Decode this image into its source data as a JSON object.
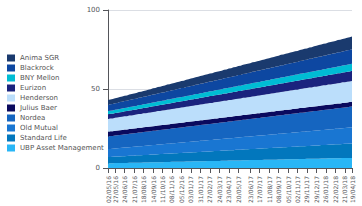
{
  "chart_data": {
    "type": "area",
    "stacked": true,
    "grid": true,
    "legend": "left",
    "ylim": [
      0,
      100
    ],
    "yticks": [
      0,
      50,
      100
    ],
    "categories": [
      "02/05/16",
      null,
      null,
      "27/05/16",
      null,
      null,
      null,
      "24/06/16",
      null,
      null,
      null,
      "21/07/16",
      null,
      null,
      null,
      "18/08/16",
      null,
      null,
      null,
      "14/09/16",
      null,
      null,
      null,
      "11/10/16",
      null,
      null,
      null,
      "08/11/16",
      null,
      null,
      null,
      "05/12/16",
      null,
      null,
      null,
      "03/01/17",
      null,
      null,
      null,
      "31/01/17",
      null,
      null,
      null,
      "27/02/17",
      null,
      null,
      null,
      "24/03/17",
      null,
      null,
      null,
      "23/04/17",
      null,
      null,
      null,
      "20/05/17",
      null,
      null,
      null,
      null,
      "23/06/17",
      null,
      null,
      null,
      "17/07/17",
      null,
      null,
      null,
      "11/08/17",
      null,
      null,
      null,
      "08/09/17",
      null,
      null,
      null,
      "05/10/17",
      null,
      null,
      null,
      "02/11/17",
      null,
      null,
      null,
      "29/11/17",
      null,
      null,
      null,
      "29/12/17",
      null,
      null,
      null,
      "26/01/18",
      null,
      null,
      null,
      "22/02/18",
      null,
      null,
      null,
      "21/03/18",
      null,
      null,
      "19/04/18"
    ],
    "series": [
      {
        "name": "UBP Asset Management",
        "color": "#29b6f6",
        "values": [
          3.0,
          3.0,
          3.0,
          3.1,
          3.1,
          3.1,
          3.2,
          3.2,
          3.2,
          3.3,
          3.3,
          3.3,
          3.4,
          3.4,
          3.4,
          3.5,
          3.5,
          3.5,
          3.6,
          3.6,
          3.6,
          3.7,
          3.7,
          3.7,
          3.8,
          3.8,
          3.8,
          3.9,
          3.9,
          3.9,
          4.0,
          4.0,
          4.0,
          4.1,
          4.1,
          4.1,
          4.2,
          4.2,
          4.2,
          4.3,
          4.3,
          4.3,
          4.4,
          4.4,
          4.4,
          4.5,
          4.5,
          4.5,
          4.6,
          4.6,
          4.6,
          4.7,
          4.7,
          4.7,
          4.8,
          4.8,
          4.8,
          4.9,
          4.9,
          4.9,
          5.0,
          5.0,
          5.0,
          5.1,
          5.1,
          5.1,
          5.2,
          5.2,
          5.2,
          5.3,
          5.3,
          5.3,
          5.4,
          5.4,
          5.4,
          5.5,
          5.5,
          5.5,
          5.6,
          5.6,
          5.6,
          5.7,
          5.7,
          5.7,
          5.8,
          5.8,
          5.8,
          5.9,
          5.9,
          5.9,
          6.0,
          6.0,
          6.0,
          6.1,
          6.1,
          6.1,
          6.2,
          6.2,
          6.2,
          6.3,
          6.3,
          6.3,
          6.4,
          6.4
        ]
      },
      {
        "name": "Standard Life",
        "color": "#0277bd",
        "values": [
          4.0,
          4.0,
          4.1,
          4.1,
          4.2,
          4.2,
          4.3,
          4.3,
          4.4,
          4.4,
          4.5,
          4.5,
          4.6,
          4.6,
          4.7,
          4.7,
          4.8,
          4.8,
          4.9,
          4.9,
          5.0,
          5.0,
          5.1,
          5.1,
          5.2,
          5.2,
          5.3,
          5.3,
          5.4,
          5.4,
          5.5,
          5.5,
          5.6,
          5.6,
          5.7,
          5.7,
          5.8,
          5.8,
          5.9,
          5.9,
          6.0,
          6.0,
          6.1,
          6.1,
          6.2,
          6.2,
          6.3,
          6.3,
          6.4,
          6.4,
          6.5,
          6.5,
          6.6,
          6.6,
          6.7,
          6.7,
          6.8,
          6.8,
          6.9,
          6.9,
          7.0,
          7.0,
          7.1,
          7.1,
          7.2,
          7.2,
          7.3,
          7.3,
          7.4,
          7.4,
          7.5,
          7.5,
          7.6,
          7.6,
          7.7,
          7.7,
          7.8,
          7.8,
          7.9,
          7.9,
          8.0,
          8.0,
          8.1,
          8.1,
          8.2,
          8.2,
          8.3,
          8.3,
          8.4,
          8.4,
          8.5,
          8.5,
          8.6,
          8.6,
          8.7,
          8.7,
          8.8,
          8.8,
          8.9,
          8.9,
          9.0,
          9.0,
          9.1,
          9.1
        ]
      },
      {
        "name": "Old Mutual",
        "color": "#1976d2",
        "values": [
          5.0,
          5.1,
          5.1,
          5.2,
          5.2,
          5.3,
          5.3,
          5.4,
          5.4,
          5.5,
          5.5,
          5.6,
          5.6,
          5.7,
          5.7,
          5.8,
          5.8,
          5.9,
          5.9,
          6.0,
          6.0,
          6.1,
          6.1,
          6.2,
          6.2,
          6.3,
          6.3,
          6.4,
          6.4,
          6.5,
          6.5,
          6.6,
          6.6,
          6.7,
          6.7,
          6.8,
          6.8,
          6.9,
          6.9,
          7.0,
          7.0,
          7.1,
          7.1,
          7.2,
          7.2,
          7.3,
          7.3,
          7.4,
          7.4,
          7.5,
          7.5,
          7.6,
          7.6,
          7.7,
          7.7,
          7.8,
          7.8,
          7.9,
          7.9,
          8.0,
          8.0,
          8.1,
          8.1,
          8.2,
          8.2,
          8.3,
          8.3,
          8.4,
          8.4,
          8.5,
          8.5,
          8.6,
          8.6,
          8.7,
          8.7,
          8.8,
          8.8,
          8.9,
          8.9,
          9.0,
          9.0,
          9.1,
          9.1,
          9.2,
          9.2,
          9.3,
          9.3,
          9.4,
          9.4,
          9.5,
          9.5,
          9.6,
          9.6,
          9.7,
          9.7,
          9.8,
          9.8,
          9.9,
          9.9,
          10.0,
          10.0,
          10.1,
          10.1,
          10.2
        ]
      },
      {
        "name": "Nordea",
        "color": "#1565c0",
        "values": [
          8.0,
          8.1,
          8.1,
          8.2,
          8.2,
          8.3,
          8.3,
          8.4,
          8.4,
          8.5,
          8.5,
          8.6,
          8.6,
          8.7,
          8.7,
          8.8,
          8.8,
          8.9,
          8.9,
          9.0,
          9.0,
          9.1,
          9.1,
          9.2,
          9.2,
          9.3,
          9.3,
          9.4,
          9.4,
          9.5,
          9.5,
          9.6,
          9.6,
          9.7,
          9.7,
          9.8,
          9.8,
          9.9,
          9.9,
          10.0,
          10.0,
          10.1,
          10.1,
          10.2,
          10.2,
          10.3,
          10.3,
          10.4,
          10.4,
          10.5,
          10.5,
          10.6,
          10.6,
          10.7,
          10.7,
          10.8,
          10.8,
          10.9,
          10.9,
          11.0,
          11.0,
          11.1,
          11.1,
          11.2,
          11.2,
          11.3,
          11.3,
          11.4,
          11.4,
          11.5,
          11.5,
          11.6,
          11.6,
          11.7,
          11.7,
          11.8,
          11.8,
          11.9,
          11.9,
          12.0,
          12.0,
          12.1,
          12.1,
          12.2,
          12.2,
          12.3,
          12.3,
          12.4,
          12.4,
          12.5,
          12.5,
          12.6,
          12.6,
          12.7,
          12.7,
          12.8,
          12.8,
          12.9,
          12.9,
          13.0,
          13.0,
          13.1,
          13.1,
          13.2
        ]
      },
      {
        "name": "Julius Baer",
        "color": "#0a0a5e",
        "values": [
          3.0,
          3.0,
          3.0,
          3.0,
          3.0,
          3.0,
          3.0,
          3.0,
          3.0,
          3.0,
          3.0,
          3.0,
          3.0,
          3.0,
          3.0,
          3.0,
          3.0,
          3.0,
          3.0,
          3.0,
          3.0,
          3.0,
          3.0,
          3.0,
          3.0,
          3.0,
          3.0,
          3.0,
          3.0,
          3.0,
          3.0,
          3.0,
          3.0,
          3.0,
          3.0,
          3.0,
          3.0,
          3.0,
          3.0,
          3.0,
          3.0,
          3.0,
          3.0,
          3.0,
          3.0,
          3.0,
          3.0,
          3.0,
          3.0,
          3.0,
          3.0,
          3.0,
          3.0,
          3.0,
          3.0,
          3.0,
          3.0,
          3.0,
          3.0,
          3.0,
          3.0,
          3.0,
          3.0,
          3.0,
          3.0,
          3.0,
          3.0,
          3.0,
          3.0,
          3.0,
          3.0,
          3.0,
          3.0,
          3.0,
          3.0,
          3.0,
          3.0,
          3.0,
          3.0,
          3.0,
          3.0,
          3.0,
          3.0,
          3.0,
          3.0,
          3.0,
          3.0,
          3.0,
          3.0,
          3.0,
          3.0,
          3.0,
          3.0,
          3.0,
          3.0,
          3.0,
          3.0,
          3.0,
          3.0,
          3.0,
          3.0,
          3.0,
          3.0,
          3.0
        ]
      },
      {
        "name": "Henderson",
        "color": "#bbdefb",
        "values": [
          8.0,
          8.1,
          8.1,
          8.2,
          8.2,
          8.3,
          8.3,
          8.4,
          8.4,
          8.5,
          8.5,
          8.6,
          8.6,
          8.7,
          8.7,
          8.8,
          8.8,
          8.9,
          8.9,
          9.0,
          9.0,
          9.1,
          9.1,
          9.2,
          9.2,
          9.3,
          9.3,
          9.4,
          9.4,
          9.5,
          9.5,
          9.6,
          9.6,
          9.7,
          9.7,
          9.8,
          9.8,
          9.9,
          9.9,
          10.0,
          10.0,
          10.1,
          10.1,
          10.2,
          10.2,
          10.3,
          10.3,
          10.4,
          10.4,
          10.5,
          10.5,
          10.6,
          10.6,
          10.7,
          10.7,
          10.8,
          10.8,
          10.9,
          10.9,
          11.0,
          11.0,
          11.1,
          11.1,
          11.2,
          11.2,
          11.3,
          11.3,
          11.4,
          11.4,
          11.5,
          11.5,
          11.6,
          11.6,
          11.7,
          11.7,
          11.8,
          11.8,
          11.9,
          11.9,
          12.0,
          12.0,
          12.1,
          12.1,
          12.2,
          12.2,
          12.3,
          12.3,
          12.4,
          12.4,
          12.5,
          12.5,
          12.6,
          12.6,
          12.7,
          12.7,
          12.8,
          12.8,
          12.9,
          12.9,
          13.0,
          13.0,
          13.1,
          13.1,
          13.2
        ]
      },
      {
        "name": "Eurizon",
        "color": "#1a237e",
        "values": [
          3.0,
          3.0,
          3.0,
          3.0,
          3.1,
          3.1,
          3.1,
          3.2,
          3.2,
          3.2,
          3.3,
          3.3,
          3.3,
          3.4,
          3.4,
          3.4,
          3.5,
          3.5,
          3.5,
          3.6,
          3.6,
          3.6,
          3.7,
          3.7,
          3.7,
          3.8,
          3.8,
          3.8,
          3.9,
          3.9,
          3.9,
          4.0,
          4.0,
          4.0,
          4.1,
          4.1,
          4.1,
          4.2,
          4.2,
          4.2,
          4.3,
          4.3,
          4.3,
          4.4,
          4.4,
          4.4,
          4.5,
          4.5,
          4.5,
          4.6,
          4.6,
          4.6,
          4.7,
          4.7,
          4.7,
          4.8,
          4.8,
          4.8,
          4.9,
          4.9,
          4.9,
          5.0,
          5.0,
          5.0,
          5.1,
          5.1,
          5.1,
          5.2,
          5.2,
          5.2,
          5.3,
          5.3,
          5.3,
          5.4,
          5.4,
          5.4,
          5.5,
          5.5,
          5.5,
          5.6,
          5.6,
          5.6,
          5.7,
          5.7,
          5.7,
          5.8,
          5.8,
          5.8,
          5.9,
          5.9,
          5.9,
          6.0,
          6.0,
          6.0,
          6.1,
          6.1,
          6.1,
          6.2,
          6.2,
          6.2,
          6.3,
          6.3,
          6.3,
          6.4
        ]
      },
      {
        "name": "BNY Mellon",
        "color": "#00bcd4",
        "values": [
          2.0,
          2.0,
          2.0,
          2.0,
          2.0,
          2.1,
          2.1,
          2.1,
          2.1,
          2.2,
          2.2,
          2.2,
          2.2,
          2.3,
          2.3,
          2.3,
          2.3,
          2.4,
          2.4,
          2.4,
          2.4,
          2.5,
          2.5,
          2.5,
          2.5,
          2.6,
          2.6,
          2.6,
          2.6,
          2.7,
          2.7,
          2.7,
          2.7,
          2.8,
          2.8,
          2.8,
          2.8,
          2.9,
          2.9,
          2.9,
          2.9,
          3.0,
          3.0,
          3.0,
          3.0,
          3.1,
          3.1,
          3.1,
          3.1,
          3.2,
          3.2,
          3.2,
          3.2,
          3.3,
          3.3,
          3.3,
          3.3,
          3.4,
          3.4,
          3.4,
          3.4,
          3.5,
          3.5,
          3.5,
          3.5,
          3.6,
          3.6,
          3.6,
          3.6,
          3.7,
          3.7,
          3.7,
          3.7,
          3.8,
          3.8,
          3.8,
          3.8,
          3.9,
          3.9,
          3.9,
          3.9,
          4.0,
          4.0,
          4.0,
          4.0,
          4.1,
          4.1,
          4.1,
          4.1,
          4.2,
          4.2,
          4.2,
          4.2,
          4.3,
          4.3,
          4.3,
          4.3,
          4.4,
          4.4,
          4.4,
          4.4,
          4.5,
          4.5,
          4.5
        ]
      },
      {
        "name": "Blackrock",
        "color": "#0d47a1",
        "values": [
          4.0,
          4.1,
          4.1,
          4.2,
          4.2,
          4.3,
          4.3,
          4.4,
          4.4,
          4.5,
          4.5,
          4.6,
          4.6,
          4.7,
          4.7,
          4.8,
          4.8,
          4.9,
          4.9,
          5.0,
          5.0,
          5.1,
          5.1,
          5.2,
          5.2,
          5.3,
          5.3,
          5.4,
          5.4,
          5.5,
          5.5,
          5.6,
          5.6,
          5.7,
          5.7,
          5.8,
          5.8,
          5.9,
          5.9,
          6.0,
          6.0,
          6.1,
          6.1,
          6.2,
          6.2,
          6.3,
          6.3,
          6.4,
          6.4,
          6.5,
          6.5,
          6.6,
          6.6,
          6.7,
          6.7,
          6.8,
          6.8,
          6.9,
          6.9,
          7.0,
          7.0,
          7.1,
          7.1,
          7.2,
          7.2,
          7.3,
          7.3,
          7.4,
          7.4,
          7.5,
          7.5,
          7.6,
          7.6,
          7.7,
          7.7,
          7.8,
          7.8,
          7.9,
          7.9,
          8.0,
          8.0,
          8.1,
          8.1,
          8.2,
          8.2,
          8.3,
          8.3,
          8.4,
          8.4,
          8.5,
          8.5,
          8.6,
          8.6,
          8.7,
          8.7,
          8.8,
          8.8,
          8.9,
          8.9,
          9.0,
          9.0,
          9.1,
          9.1,
          9.2
        ]
      },
      {
        "name": "Anima SGR",
        "color": "#1a3a6e",
        "values": [
          3.0,
          3.0,
          3.1,
          3.1,
          3.2,
          3.2,
          3.3,
          3.3,
          3.4,
          3.4,
          3.5,
          3.5,
          3.6,
          3.6,
          3.7,
          3.7,
          3.8,
          3.8,
          3.9,
          3.9,
          4.0,
          4.0,
          4.1,
          4.1,
          4.2,
          4.2,
          4.3,
          4.3,
          4.4,
          4.4,
          4.5,
          4.5,
          4.6,
          4.6,
          4.7,
          4.7,
          4.8,
          4.8,
          4.9,
          4.9,
          5.0,
          5.0,
          5.1,
          5.1,
          5.2,
          5.2,
          5.3,
          5.3,
          5.4,
          5.4,
          5.5,
          5.5,
          5.6,
          5.6,
          5.7,
          5.7,
          5.8,
          5.8,
          5.9,
          5.9,
          6.0,
          6.0,
          6.1,
          6.1,
          6.2,
          6.2,
          6.3,
          6.3,
          6.4,
          6.4,
          6.5,
          6.5,
          6.6,
          6.6,
          6.7,
          6.7,
          6.8,
          6.8,
          6.9,
          6.9,
          7.0,
          7.0,
          7.1,
          7.1,
          7.2,
          7.2,
          7.3,
          7.3,
          7.4,
          7.4,
          7.5,
          7.5,
          7.6,
          7.6,
          7.7,
          7.7,
          7.8,
          7.8,
          7.9,
          7.9,
          8.0,
          8.0,
          8.1,
          8.1
        ]
      }
    ]
  }
}
